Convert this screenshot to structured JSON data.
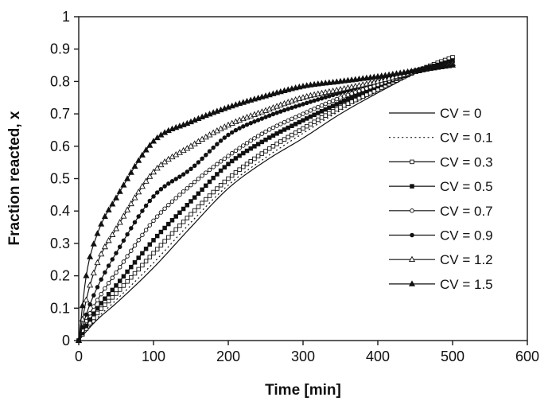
{
  "figure": {
    "background": "#ffffff",
    "line_color": "#111111",
    "axis_color": "#1a1a1a",
    "marker_open_fill": "#ffffff"
  },
  "chart_data": {
    "type": "line",
    "title": "",
    "xlabel": "Time [min]",
    "ylabel": "Fraction reacted, x",
    "xlim": [
      0,
      600
    ],
    "ylim": [
      0,
      1
    ],
    "grid": false,
    "legend_position": "inside-right",
    "xticks": [
      {
        "v": 0,
        "label": "0"
      },
      {
        "v": 100,
        "label": "100"
      },
      {
        "v": 200,
        "label": "200"
      },
      {
        "v": 300,
        "label": "300"
      },
      {
        "v": 400,
        "label": "400"
      },
      {
        "v": 500,
        "label": "500"
      },
      {
        "v": 600,
        "label": "600"
      }
    ],
    "yticks": [
      {
        "v": 0,
        "label": "0"
      },
      {
        "v": 0.1,
        "label": "0.1"
      },
      {
        "v": 0.2,
        "label": "0.2"
      },
      {
        "v": 0.3,
        "label": "0.3"
      },
      {
        "v": 0.4,
        "label": "0.4"
      },
      {
        "v": 0.5,
        "label": "0.5"
      },
      {
        "v": 0.6,
        "label": "0.6"
      },
      {
        "v": 0.7,
        "label": "0.7"
      },
      {
        "v": 0.8,
        "label": "0.8"
      },
      {
        "v": 0.9,
        "label": "0.9"
      },
      {
        "v": 1,
        "label": "1"
      }
    ],
    "t_anchors": [
      0,
      10,
      25,
      50,
      100,
      150,
      200,
      250,
      300,
      350,
      400,
      450,
      500
    ],
    "marker_step_min": 5,
    "t_end": 500,
    "series": [
      {
        "label": "CV = 0",
        "cv": 0,
        "line": "solid",
        "marker": "none",
        "x": [
          0,
          0.028,
          0.065,
          0.115,
          0.225,
          0.35,
          0.47,
          0.555,
          0.625,
          0.7,
          0.765,
          0.825,
          0.875
        ]
      },
      {
        "label": "CV = 0.1",
        "cv": 0.1,
        "line": "dotted",
        "marker": "none",
        "x": [
          0,
          0.03,
          0.07,
          0.125,
          0.24,
          0.365,
          0.48,
          0.565,
          0.64,
          0.71,
          0.77,
          0.825,
          0.87
        ]
      },
      {
        "label": "CV = 0.3",
        "cv": 0.3,
        "line": "solid",
        "marker": "square-open",
        "x": [
          0,
          0.037,
          0.085,
          0.145,
          0.27,
          0.39,
          0.5,
          0.585,
          0.655,
          0.72,
          0.775,
          0.83,
          0.875
        ]
      },
      {
        "label": "CV = 0.5",
        "cv": 0.5,
        "line": "solid",
        "marker": "square-filled",
        "x": [
          0,
          0.045,
          0.1,
          0.17,
          0.31,
          0.43,
          0.545,
          0.62,
          0.68,
          0.735,
          0.785,
          0.83,
          0.865
        ]
      },
      {
        "label": "CV = 0.7",
        "cv": 0.7,
        "line": "solid",
        "marker": "circle-open",
        "x": [
          0,
          0.06,
          0.125,
          0.21,
          0.37,
          0.48,
          0.57,
          0.645,
          0.7,
          0.75,
          0.79,
          0.83,
          0.86
        ]
      },
      {
        "label": "CV = 0.9",
        "cv": 0.9,
        "line": "solid",
        "marker": "circle-filled",
        "x": [
          0,
          0.08,
          0.165,
          0.27,
          0.445,
          0.53,
          0.635,
          0.69,
          0.73,
          0.765,
          0.8,
          0.835,
          0.86
        ]
      },
      {
        "label": "CV = 1.2",
        "cv": 1.2,
        "line": "solid",
        "marker": "triangle-open",
        "x": [
          0,
          0.125,
          0.24,
          0.345,
          0.52,
          0.6,
          0.665,
          0.71,
          0.75,
          0.775,
          0.8,
          0.83,
          0.855
        ]
      },
      {
        "label": "CV = 1.5",
        "cv": 1.5,
        "line": "solid",
        "marker": "triangle-filled",
        "x": [
          0,
          0.2,
          0.33,
          0.44,
          0.615,
          0.675,
          0.72,
          0.755,
          0.785,
          0.8,
          0.815,
          0.833,
          0.85
        ]
      }
    ]
  }
}
